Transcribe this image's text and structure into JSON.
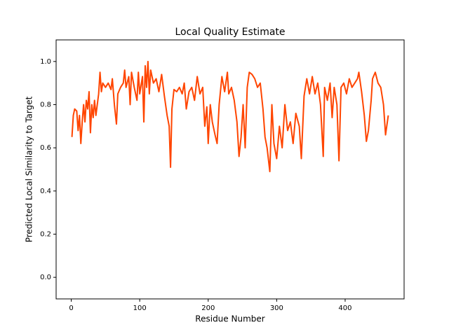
{
  "chart_data": {
    "type": "line",
    "title": "Local Quality Estimate",
    "x_label": "Residue Number",
    "y_label": "Predicted Local Similarity to Target",
    "xlim": [
      -22.1,
      486.1
    ],
    "ylim": [
      -0.1,
      1.1
    ],
    "xticks": [
      0,
      100,
      200,
      300,
      400
    ],
    "yticks": [
      {
        "value": 0,
        "label": "0.0"
      },
      0.2,
      0.4,
      0.6,
      0.8,
      {
        "value": 1,
        "label": "1.0"
      }
    ],
    "grid": false,
    "series": [
      {
        "color": "#ff4500",
        "x": [
          1,
          3,
          5,
          8,
          10,
          12,
          14,
          16,
          18,
          20,
          22,
          24,
          26,
          28,
          30,
          32,
          34,
          36,
          38,
          40,
          42,
          44,
          46,
          50,
          54,
          58,
          60,
          63,
          66,
          68,
          72,
          76,
          78,
          80,
          84,
          86,
          88,
          92,
          96,
          98,
          100,
          104,
          106,
          108,
          110,
          112,
          114,
          116,
          120,
          124,
          128,
          132,
          136,
          140,
          143,
          145,
          147,
          150,
          154,
          158,
          162,
          165,
          168,
          172,
          176,
          180,
          184,
          188,
          192,
          195,
          198,
          200,
          203,
          206,
          210,
          213,
          216,
          220,
          224,
          228,
          230,
          234,
          238,
          242,
          245,
          248,
          251,
          254,
          257,
          260,
          264,
          268,
          272,
          276,
          280,
          283,
          286,
          290,
          293,
          296,
          300,
          304,
          308,
          312,
          316,
          320,
          324,
          328,
          333,
          336,
          340,
          344,
          348,
          352,
          356,
          360,
          364,
          368,
          370,
          374,
          378,
          381,
          384,
          388,
          391,
          394,
          398,
          402,
          406,
          410,
          414,
          418,
          420,
          424,
          428,
          431,
          434,
          438,
          440,
          444,
          448,
          452,
          456,
          459,
          463
        ],
        "values": [
          0.65,
          0.75,
          0.78,
          0.77,
          0.68,
          0.75,
          0.62,
          0.72,
          0.8,
          0.72,
          0.82,
          0.78,
          0.86,
          0.67,
          0.8,
          0.74,
          0.82,
          0.75,
          0.8,
          0.85,
          0.95,
          0.86,
          0.9,
          0.88,
          0.9,
          0.87,
          0.92,
          0.8,
          0.71,
          0.85,
          0.88,
          0.9,
          0.96,
          0.88,
          0.93,
          0.8,
          0.95,
          0.88,
          0.82,
          0.95,
          0.85,
          0.93,
          0.72,
          0.98,
          0.88,
          1.0,
          0.85,
          0.96,
          0.9,
          0.92,
          0.86,
          0.94,
          0.84,
          0.75,
          0.7,
          0.51,
          0.78,
          0.87,
          0.86,
          0.88,
          0.85,
          0.9,
          0.78,
          0.86,
          0.88,
          0.82,
          0.93,
          0.85,
          0.88,
          0.7,
          0.79,
          0.62,
          0.8,
          0.72,
          0.66,
          0.62,
          0.8,
          0.93,
          0.86,
          0.95,
          0.85,
          0.88,
          0.82,
          0.72,
          0.56,
          0.65,
          0.8,
          0.6,
          0.88,
          0.95,
          0.94,
          0.92,
          0.88,
          0.9,
          0.78,
          0.65,
          0.6,
          0.49,
          0.8,
          0.62,
          0.55,
          0.7,
          0.6,
          0.8,
          0.68,
          0.72,
          0.62,
          0.76,
          0.7,
          0.55,
          0.84,
          0.92,
          0.85,
          0.93,
          0.85,
          0.9,
          0.8,
          0.56,
          0.88,
          0.82,
          0.9,
          0.74,
          0.88,
          0.8,
          0.54,
          0.88,
          0.9,
          0.85,
          0.92,
          0.88,
          0.9,
          0.92,
          0.95,
          0.86,
          0.75,
          0.63,
          0.68,
          0.82,
          0.92,
          0.95,
          0.9,
          0.88,
          0.8,
          0.66,
          0.75
        ]
      }
    ]
  }
}
